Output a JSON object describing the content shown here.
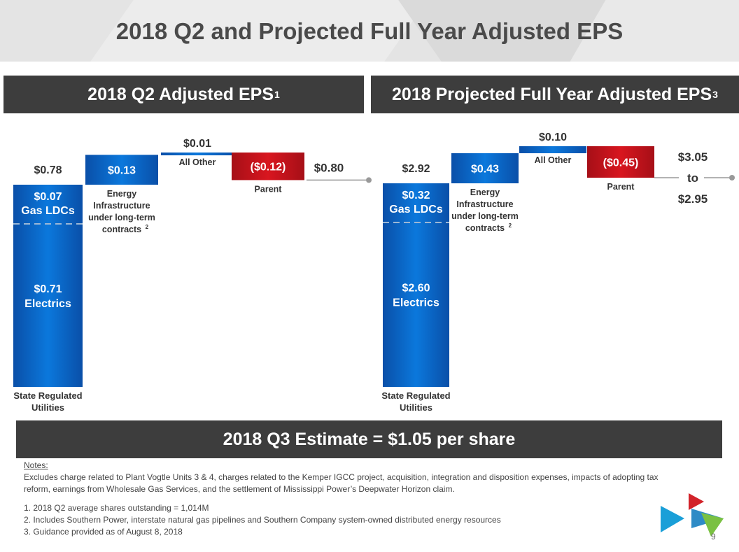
{
  "title": "2018 Q2 and Projected Full Year Adjusted EPS",
  "panels": [
    {
      "title": "2018 Q2 Adjusted EPS",
      "sup": "1"
    },
    {
      "title": "2018 Projected Full Year Adjusted EPS",
      "sup": "3"
    }
  ],
  "estimate": "2018 Q3 Estimate = $1.05 per share",
  "notes": {
    "heading": "Notes:",
    "intro": "Excludes charge related to Plant Vogtle Units 3 & 4, charges related to the Kemper IGCC project, acquisition, integration and disposition expenses, impacts of adopting tax reform, earnings from Wholesale Gas Services, and the settlement of Mississippi Power’s Deepwater Horizon claim.",
    "items": [
      "1. 2018 Q2 average shares outstanding = 1,014M",
      "2. Includes Southern Power, interstate natural gas pipelines and Southern Company system-owned distributed energy resources",
      "3. Guidance provided as of August 8, 2018"
    ]
  },
  "page_number": "9",
  "colors": {
    "blue": "#0b6fd0",
    "red": "#c8141e",
    "header": "#3d3d3d"
  },
  "chart_data": [
    {
      "type": "bar",
      "subtype": "waterfall",
      "title": "2018 Q2 Adjusted EPS",
      "stack": {
        "label": [
          "State Regulated",
          "Utilities"
        ],
        "total_label": "$0.78",
        "segments": [
          {
            "value": 0.71,
            "label": [
              "$0.71",
              "Electrics"
            ]
          },
          {
            "value": 0.07,
            "label": [
              "$0.07",
              "Gas LDCs"
            ]
          }
        ]
      },
      "steps": [
        {
          "value": 0.13,
          "value_label": "$0.13",
          "label": [
            "Energy",
            "Infrastructure",
            "under long-term",
            "contracts"
          ],
          "label_sup": "2"
        },
        {
          "value": 0.01,
          "value_label": "$0.01",
          "label": [
            "All Other"
          ]
        },
        {
          "value": -0.12,
          "value_label": "($0.12)",
          "label": [
            "Parent"
          ]
        }
      ],
      "result": {
        "value": 0.8,
        "label": "$0.80"
      }
    },
    {
      "type": "bar",
      "subtype": "waterfall",
      "title": "2018 Projected Full Year Adjusted EPS",
      "stack": {
        "label": [
          "State Regulated",
          "Utilities"
        ],
        "total_label": "$2.92",
        "segments": [
          {
            "value": 2.6,
            "label": [
              "$2.60",
              "Electrics"
            ]
          },
          {
            "value": 0.32,
            "label": [
              "$0.32",
              "Gas LDCs"
            ]
          }
        ]
      },
      "steps": [
        {
          "value": 0.43,
          "value_label": "$0.43",
          "label": [
            "Energy",
            "Infrastructure",
            "under long-term",
            "contracts"
          ],
          "label_sup": "2"
        },
        {
          "value": 0.1,
          "value_label": "$0.10",
          "label": [
            "All Other"
          ]
        },
        {
          "value": -0.45,
          "value_label": "($0.45)",
          "label": [
            "Parent"
          ]
        }
      ],
      "result": {
        "value_high": 3.05,
        "value_low": 2.95,
        "label": [
          "$3.05",
          "to",
          "$2.95"
        ]
      }
    }
  ]
}
